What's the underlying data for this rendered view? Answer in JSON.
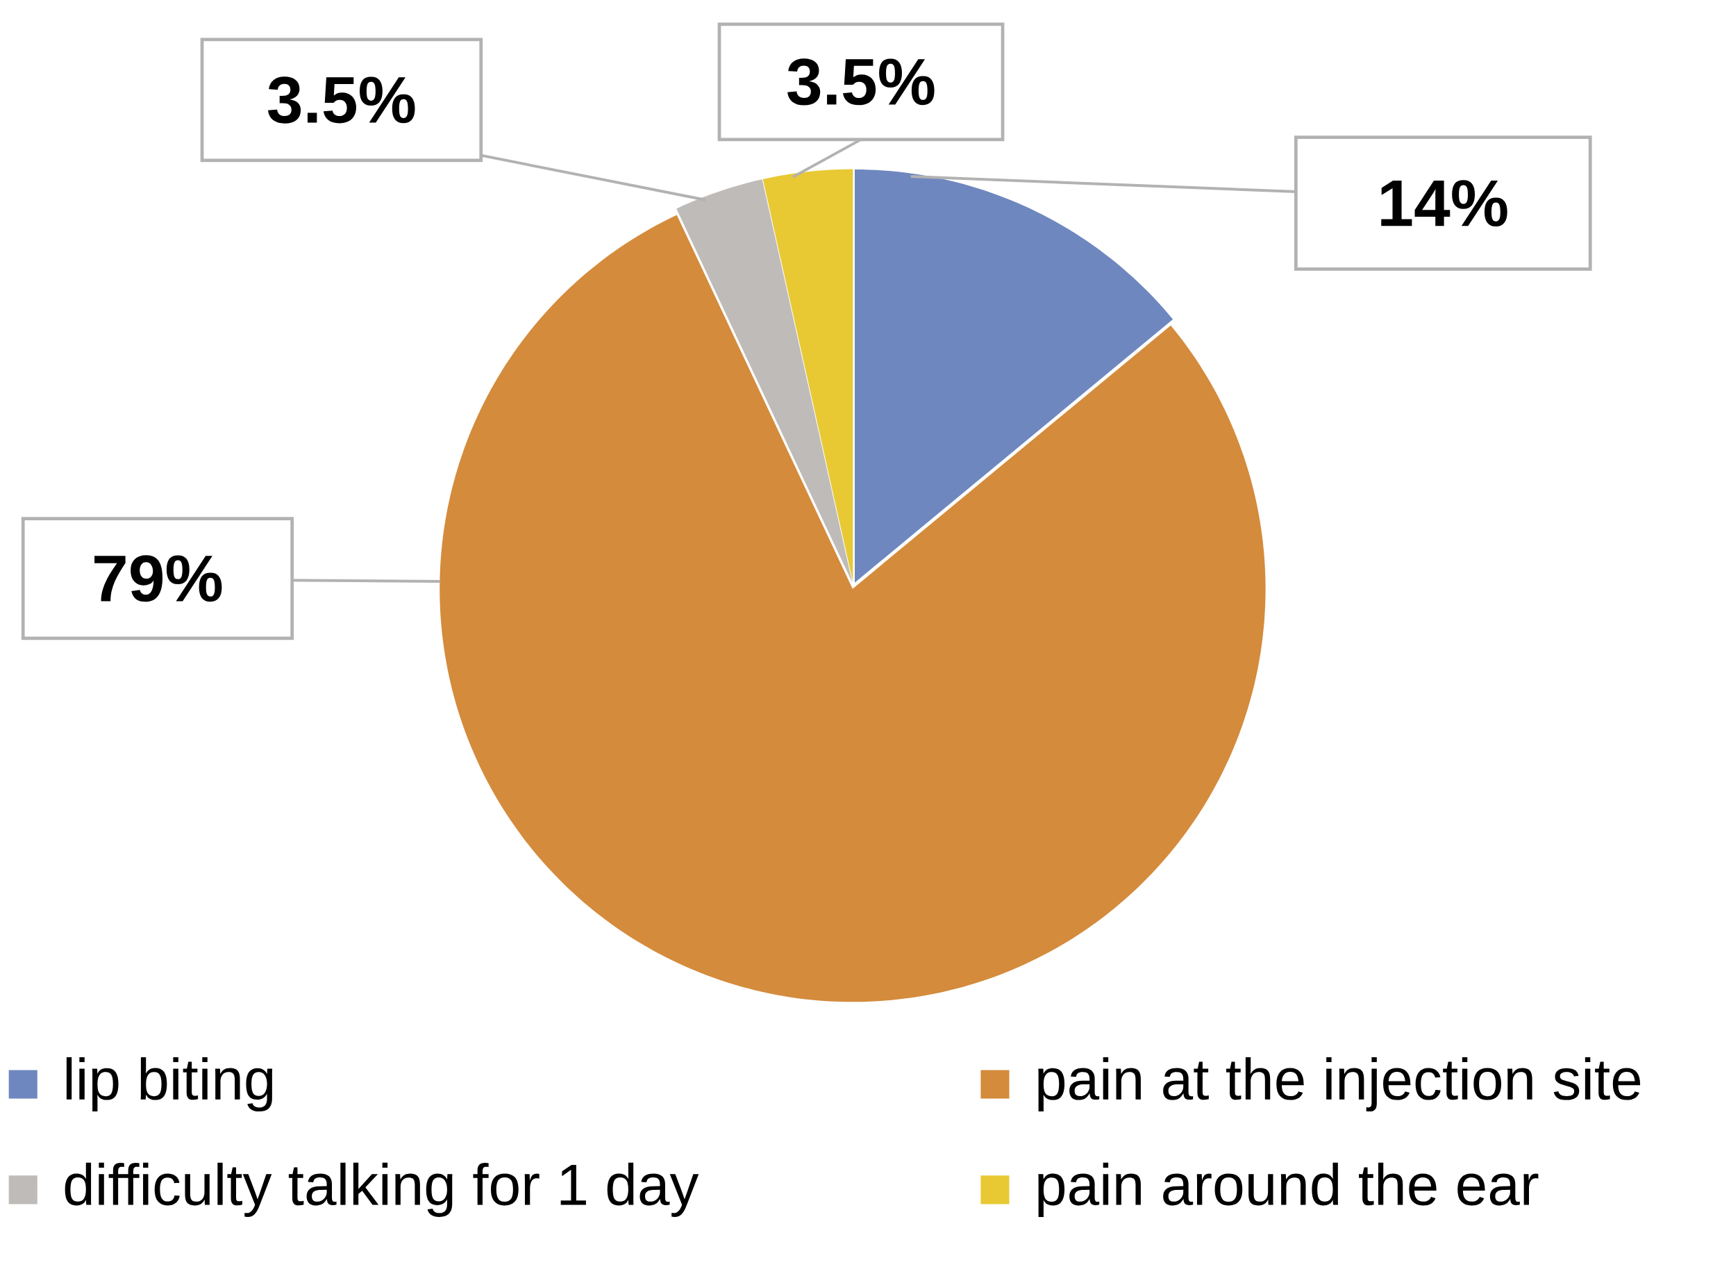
{
  "chart_data": {
    "type": "pie",
    "categories": [
      "lip biting",
      "pain at the injection site",
      "difficulty talking for 1 day",
      "pain around the ear"
    ],
    "values": [
      14,
      79,
      3.5,
      3.5
    ],
    "colors": [
      "#6f87bf",
      "#d48b3c",
      "#bfbbb8",
      "#e8c934"
    ],
    "value_labels": [
      "14%",
      "79%",
      "3.5%",
      "3.5%"
    ],
    "legend": "bottom"
  }
}
